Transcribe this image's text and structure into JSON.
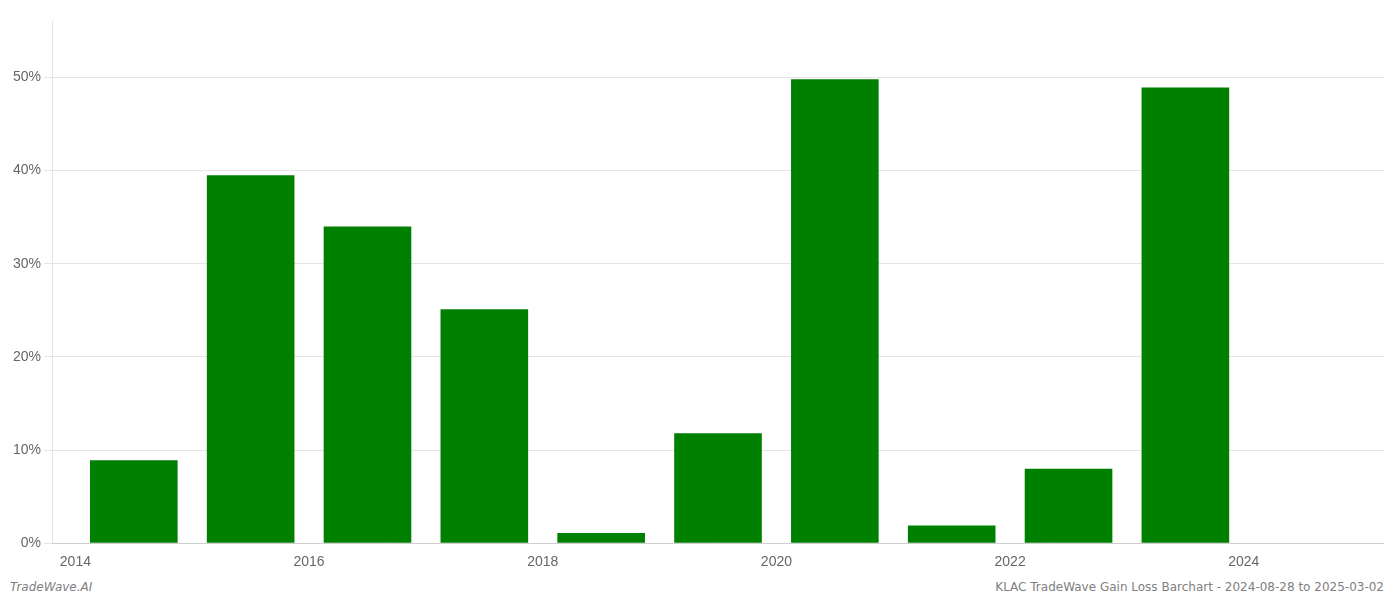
{
  "chart_data": {
    "type": "bar",
    "x": [
      2014,
      2015,
      2016,
      2017,
      2018,
      2019,
      2020,
      2021,
      2022,
      2023,
      2024
    ],
    "values": [
      0.089,
      0.395,
      0.34,
      0.251,
      0.011,
      0.118,
      0.498,
      0.019,
      0.08,
      0.489,
      0.0
    ],
    "color": "#008000",
    "xlim": [
      2013.3,
      2024.7
    ],
    "xticks": [
      {
        "value": 2013.5,
        "label": "2014"
      },
      {
        "value": 2015.5,
        "label": "2016"
      },
      {
        "value": 2017.5,
        "label": "2018"
      },
      {
        "value": 2019.5,
        "label": "2020"
      },
      {
        "value": 2021.5,
        "label": "2022"
      },
      {
        "value": 2023.5,
        "label": "2024"
      }
    ],
    "ylim": [
      0,
      0.56
    ],
    "yticks": [
      {
        "value": 0.0,
        "label": "0%"
      },
      {
        "value": 0.1,
        "label": "10%"
      },
      {
        "value": 0.2,
        "label": "20%"
      },
      {
        "value": 0.3,
        "label": "30%"
      },
      {
        "value": 0.4,
        "label": "40%"
      },
      {
        "value": 0.5,
        "label": "50%"
      }
    ],
    "grid": true,
    "annotations": [
      "TradeWave.AI",
      "KLAC TradeWave Gain Loss Barchart - 2024-08-28 to 2025-03-02"
    ]
  }
}
